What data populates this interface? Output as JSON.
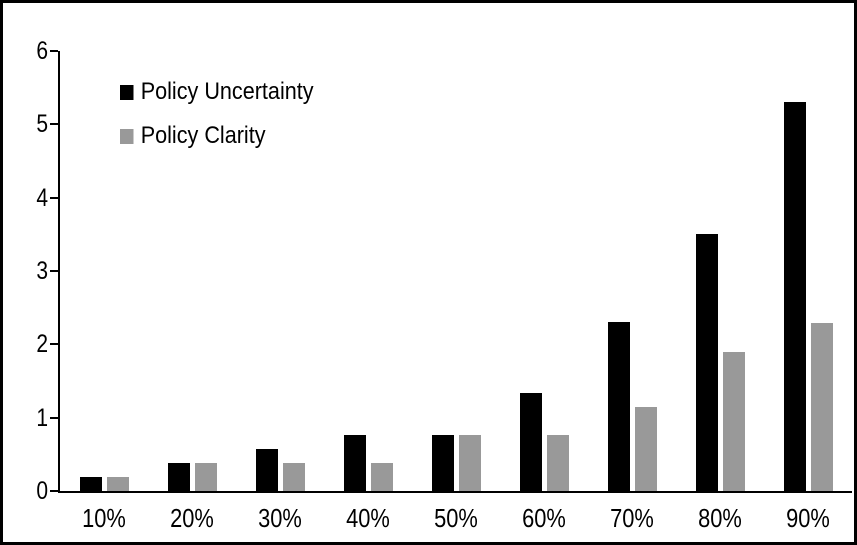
{
  "frame": {
    "background": "#FFFFFF",
    "border_color": "#000000"
  },
  "chart_data": {
    "type": "bar",
    "title": "",
    "xlabel": "",
    "ylabel": "",
    "categories": [
      "10%",
      "20%",
      "30%",
      "40%",
      "50%",
      "60%",
      "70%",
      "80%",
      "90%"
    ],
    "series": [
      {
        "name": "Policy Uncertainty",
        "color": "#000000",
        "values": [
          0.19,
          0.38,
          0.57,
          0.76,
          0.77,
          1.33,
          2.31,
          3.5,
          5.31
        ]
      },
      {
        "name": "Policy Clarity",
        "color": "#999999",
        "values": [
          0.19,
          0.38,
          0.38,
          0.38,
          0.77,
          0.77,
          1.14,
          1.9,
          2.29
        ]
      }
    ],
    "ylim": [
      0,
      6
    ],
    "yticks": [
      0,
      1,
      2,
      3,
      4,
      5,
      6
    ],
    "grid": false,
    "legend_position": "top-left"
  }
}
